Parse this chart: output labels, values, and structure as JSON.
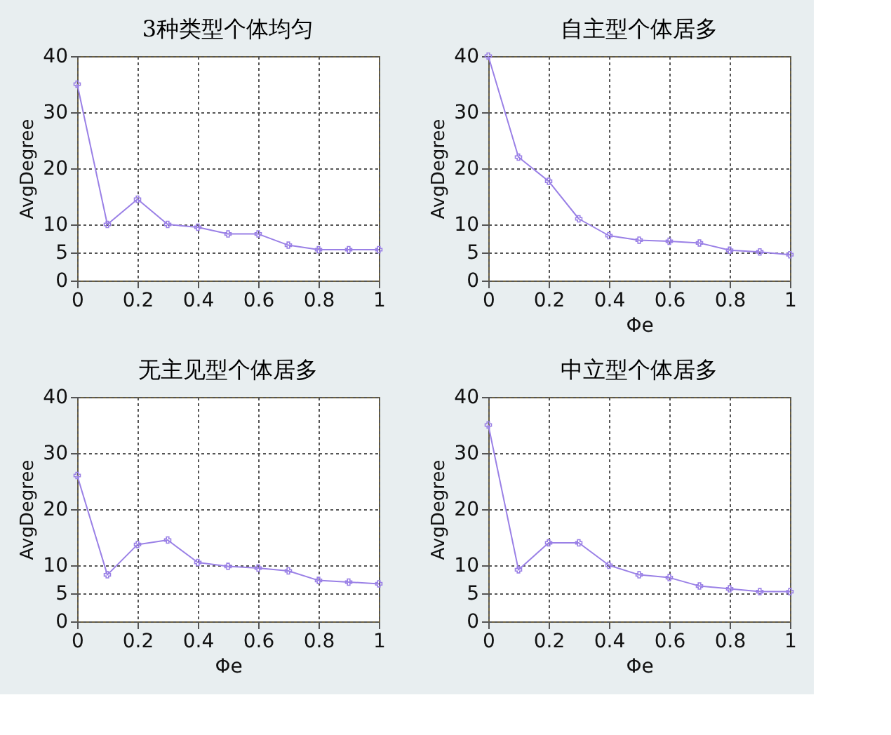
{
  "chart_data": [
    {
      "type": "line",
      "title": "3种类型个体均匀",
      "ylabel": "AvgDegree",
      "x": [
        0,
        0.1,
        0.2,
        0.3,
        0.4,
        0.5,
        0.6,
        0.7,
        0.8,
        0.9,
        1
      ],
      "series": [
        {
          "color": "#9a80e6",
          "values": [
            35,
            10,
            14.5,
            10,
            9.5,
            8.3,
            8.3,
            6.3,
            5.5,
            5.5,
            5.5
          ]
        }
      ],
      "xlim": [
        0,
        1
      ],
      "xticks": [
        0,
        0.2,
        0.4,
        0.6,
        0.8,
        1
      ],
      "ylim": [
        0,
        40
      ],
      "yticks": [
        0,
        5,
        10,
        20,
        30,
        40
      ],
      "grid": true,
      "marker": "cross",
      "line_style": "solid"
    },
    {
      "type": "line",
      "title": "自主型个体居多",
      "xlabel": "Φe",
      "ylabel": "AvgDegree",
      "x": [
        0,
        0.1,
        0.2,
        0.3,
        0.4,
        0.5,
        0.6,
        0.7,
        0.8,
        0.9,
        1
      ],
      "series": [
        {
          "color": "#9a80e6",
          "values": [
            40,
            22,
            17.7,
            11,
            8,
            7.2,
            7,
            6.7,
            5.4,
            5.1,
            4.6
          ]
        }
      ],
      "xlim": [
        0,
        1
      ],
      "xticks": [
        0,
        0.2,
        0.4,
        0.6,
        0.8,
        1
      ],
      "ylim": [
        0,
        40
      ],
      "yticks": [
        0,
        5,
        10,
        20,
        30,
        40
      ],
      "grid": true,
      "marker": "cross",
      "line_style": "solid"
    },
    {
      "type": "line",
      "title": "无主见型个体居多",
      "xlabel": "Φe",
      "ylabel": "AvgDegree",
      "x": [
        0,
        0.1,
        0.2,
        0.3,
        0.4,
        0.5,
        0.6,
        0.7,
        0.8,
        0.9,
        1
      ],
      "series": [
        {
          "color": "#9a80e6",
          "values": [
            26,
            8.3,
            13.7,
            14.5,
            10.5,
            9.8,
            9.5,
            9,
            7.3,
            7,
            6.7
          ]
        }
      ],
      "xlim": [
        0,
        1
      ],
      "xticks": [
        0,
        0.2,
        0.4,
        0.6,
        0.8,
        1
      ],
      "ylim": [
        0,
        40
      ],
      "yticks": [
        0,
        5,
        10,
        20,
        30,
        40
      ],
      "grid": true,
      "marker": "cross",
      "line_style": "solid"
    },
    {
      "type": "line",
      "title": "中立型个体居多",
      "xlabel": "Φe",
      "ylabel": "AvgDegree",
      "x": [
        0,
        0.1,
        0.2,
        0.3,
        0.4,
        0.5,
        0.6,
        0.7,
        0.8,
        0.9,
        1
      ],
      "series": [
        {
          "color": "#9a80e6",
          "values": [
            35,
            9.2,
            14,
            14,
            10,
            8.3,
            7.8,
            6.3,
            5.8,
            5.3,
            5.3
          ]
        }
      ],
      "xlim": [
        0,
        1
      ],
      "xticks": [
        0,
        0.2,
        0.4,
        0.6,
        0.8,
        1
      ],
      "ylim": [
        0,
        40
      ],
      "yticks": [
        0,
        5,
        10,
        20,
        30,
        40
      ],
      "grid": true,
      "marker": "cross",
      "line_style": "solid"
    }
  ]
}
